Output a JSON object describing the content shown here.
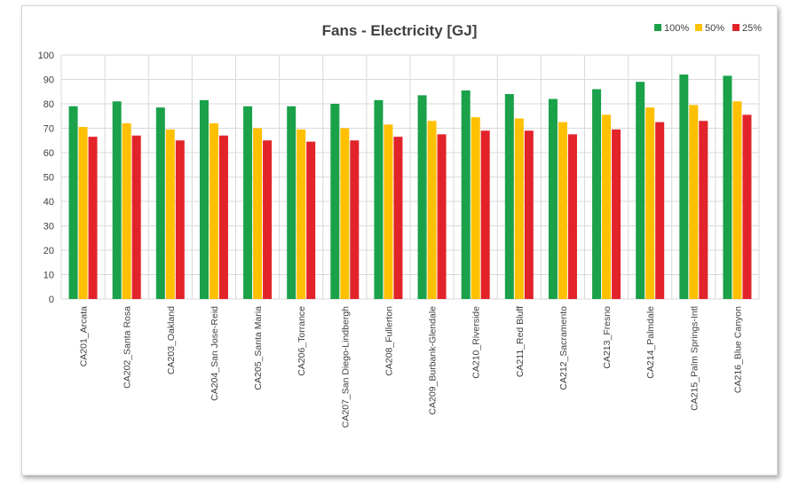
{
  "chart_data": {
    "type": "bar",
    "title": "Fans - Electricity [GJ]",
    "xlabel": "",
    "ylabel": "",
    "ylim": [
      0,
      100
    ],
    "yticks": [
      0,
      10,
      20,
      30,
      40,
      50,
      60,
      70,
      80,
      90,
      100
    ],
    "grid": true,
    "legend_position": "top-right",
    "categories": [
      "CA201_Arcata",
      "CA202_Santa Rosa",
      "CA203_Oakland",
      "CA204_San Jose-Reid",
      "CA205_Santa Maria",
      "CA206_Torrance",
      "CA207_San Diego-Lindbergh",
      "CA208_Fullerton",
      "CA209_Burbank-Glendale",
      "CA210_Riverside",
      "CA211_Red Bluff",
      "CA212_Sacramento",
      "CA213_Fresno",
      "CA214_Palmdale",
      "CA215_Palm Springs-Intl",
      "CA216_Blue Canyon"
    ],
    "series": [
      {
        "name": "100%",
        "color": "#1aa14a",
        "values": [
          79,
          81,
          78.5,
          81.5,
          79,
          79,
          80,
          81.5,
          83.5,
          85.5,
          84,
          82,
          86,
          89,
          92,
          91.5
        ]
      },
      {
        "name": "50%",
        "color": "#ffc000",
        "values": [
          70.5,
          72,
          69.5,
          72,
          70,
          69.5,
          70,
          71.5,
          73,
          74.5,
          74,
          72.5,
          75.5,
          78.5,
          79.5,
          81
        ]
      },
      {
        "name": "25%",
        "color": "#e2242a",
        "values": [
          66.5,
          67,
          65,
          67,
          65,
          64.5,
          65,
          66.5,
          67.5,
          69,
          69,
          67.5,
          69.5,
          72.5,
          73,
          75.5
        ]
      }
    ]
  }
}
